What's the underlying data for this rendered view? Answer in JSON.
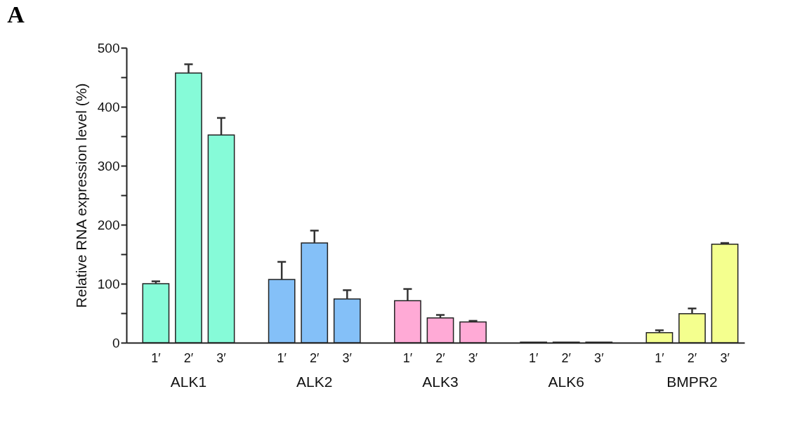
{
  "chart_data": {
    "type": "bar",
    "title": "A",
    "ylabel": "Relative RNA expression level (%)",
    "categories": [
      "1′",
      "2′",
      "3′",
      "1′",
      "2′",
      "3′",
      "1′",
      "2′",
      "3′",
      "1′",
      "2′",
      "3′",
      "1′",
      "2′",
      "3′"
    ],
    "values": [
      100,
      457,
      352,
      107,
      169,
      74,
      71,
      42,
      35,
      1,
      1,
      1,
      17,
      49,
      167
    ],
    "errors": [
      4,
      15,
      29,
      30,
      21,
      15,
      20,
      5,
      2,
      null,
      null,
      null,
      4,
      9,
      2
    ],
    "colors": [
      "#86fbd8",
      "#86fbd8",
      "#86fbd8",
      "#84c0f8",
      "#84c0f8",
      "#84c0f8",
      "#ffaad6",
      "#ffaad6",
      "#ffaad6",
      "#d0d0d0",
      "#d0d0d0",
      "#d0d0d0",
      "#f4ff8e",
      "#f4ff8e",
      "#f4ff8e"
    ],
    "annotations": [
      "ALK1",
      "ALK2",
      "ALK3",
      "ALK6",
      "BMPR2"
    ],
    "ylim": [
      0,
      500
    ],
    "yticks": [
      0,
      {
        "value": 50,
        "label": null
      },
      100,
      {
        "value": 150,
        "label": null
      },
      200,
      {
        "value": 250,
        "label": null
      },
      300,
      {
        "value": 350,
        "label": null
      },
      400,
      {
        "value": 450,
        "label": null
      },
      500
    ],
    "grid": false
  }
}
